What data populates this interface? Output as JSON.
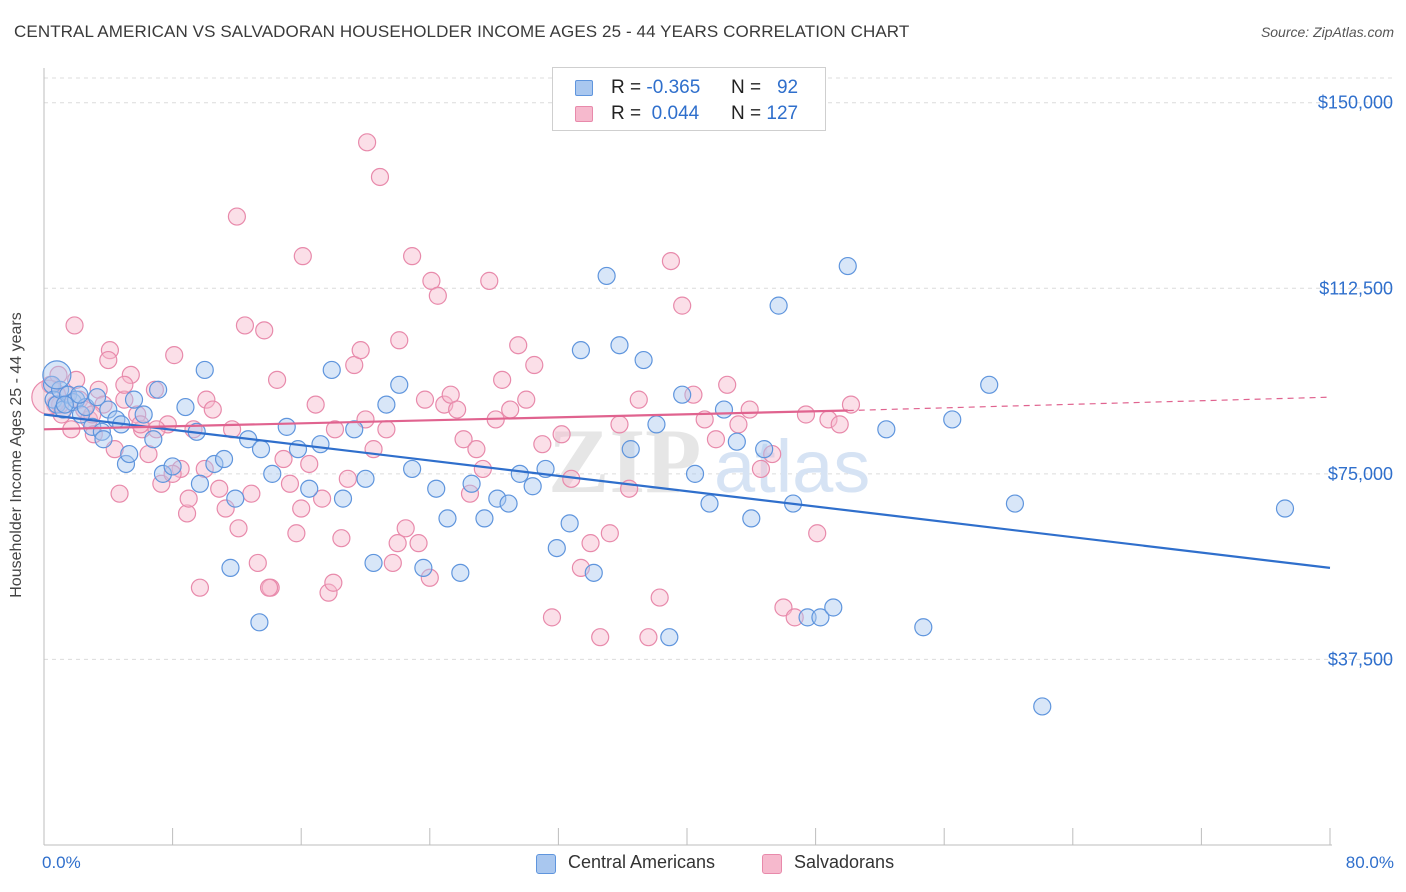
{
  "title": "CENTRAL AMERICAN VS SALVADORAN HOUSEHOLDER INCOME AGES 25 - 44 YEARS CORRELATION CHART",
  "source": "Source: ZipAtlas.com",
  "watermark": {
    "zip": "ZIP",
    "atlas": "atlas"
  },
  "legend": {
    "rows": [
      {
        "r_label": "R =",
        "r_value": "-0.365",
        "n_label": "N =",
        "n_value": "92"
      },
      {
        "r_label": "R =",
        "r_value": "0.044",
        "n_label": "N =",
        "n_value": "127"
      }
    ]
  },
  "bottom_legend": [
    "Central Americans",
    "Salvadorans"
  ],
  "x_axis_labels": {
    "min": "0.0%",
    "max": "80.0%"
  },
  "colors": {
    "blue_fill": "#a9c7ef",
    "blue_stroke": "#5f95dd",
    "blue_line": "#2f6fcc",
    "pink_fill": "#f6b9cd",
    "pink_stroke": "#e88aab",
    "pink_line": "#e0638f",
    "axis_text": "#2f6fcc",
    "grid": "#dcdcdc"
  },
  "chart_data": {
    "type": "scatter",
    "title": "CENTRAL AMERICAN VS SALVADORAN HOUSEHOLDER INCOME AGES 25 - 44 YEARS CORRELATION CHART",
    "xlabel": "",
    "ylabel": "Householder Income Ages 25 - 44 years",
    "xlim": [
      0,
      80
    ],
    "ylim": [
      0,
      155000
    ],
    "y_ticks": [
      37500,
      75000,
      112500,
      150000
    ],
    "y_tick_labels": [
      "$37,500",
      "$75,000",
      "$112,500",
      "$150,000"
    ],
    "grid": true,
    "legend_position": "top-center",
    "series": [
      {
        "name": "Central Americans",
        "r": -0.365,
        "n": 92,
        "trend": {
          "x": [
            0,
            80
          ],
          "y": [
            87000,
            56000
          ],
          "style": "solid"
        },
        "x": [
          0.5,
          0.6,
          0.8,
          1.0,
          1.2,
          1.5,
          1.8,
          2.0,
          2.3,
          2.6,
          3.0,
          3.3,
          3.6,
          4.0,
          4.5,
          4.8,
          5.1,
          5.6,
          6.2,
          6.8,
          7.4,
          8.0,
          8.8,
          9.5,
          10.0,
          10.6,
          11.2,
          11.9,
          12.7,
          13.5,
          14.2,
          15.1,
          15.8,
          16.5,
          17.2,
          17.9,
          18.6,
          19.3,
          20.0,
          20.5,
          21.3,
          22.1,
          22.9,
          23.6,
          24.4,
          25.1,
          25.9,
          26.6,
          27.4,
          28.2,
          28.9,
          29.6,
          30.4,
          31.2,
          31.9,
          32.7,
          33.4,
          34.2,
          35.0,
          35.8,
          36.5,
          37.3,
          38.1,
          38.9,
          39.7,
          40.5,
          41.4,
          42.3,
          43.1,
          44.0,
          44.8,
          45.7,
          46.6,
          47.5,
          48.3,
          49.1,
          50.0,
          52.4,
          54.7,
          56.5,
          58.8,
          60.4,
          62.1,
          77.2,
          1.3,
          2.2,
          3.7,
          5.3,
          7.1,
          9.7,
          11.6,
          13.4
        ],
        "y": [
          93000,
          90000,
          89000,
          92000,
          88000,
          91000,
          89500,
          90000,
          87000,
          88500,
          84500,
          90500,
          83500,
          88000,
          86000,
          85000,
          77000,
          90000,
          87000,
          82000,
          75000,
          76500,
          88500,
          83500,
          96000,
          77000,
          78000,
          70000,
          82000,
          80000,
          75000,
          84500,
          80000,
          72000,
          81000,
          96000,
          70000,
          84000,
          74000,
          57000,
          89000,
          93000,
          76000,
          56000,
          72000,
          66000,
          55000,
          73000,
          66000,
          70000,
          69000,
          75000,
          72500,
          76000,
          60000,
          65000,
          100000,
          55000,
          115000,
          101000,
          80000,
          98000,
          85000,
          42000,
          91000,
          75000,
          69000,
          88000,
          81500,
          66000,
          80000,
          109000,
          69000,
          46000,
          46000,
          48000,
          117000,
          84000,
          44000,
          86000,
          93000,
          69000,
          28000,
          68000,
          89000,
          91000,
          82000,
          79000,
          92000,
          73000,
          56000,
          45000
        ],
        "label_note": "scatter points"
      },
      {
        "name": "Salvadorans",
        "r": 0.044,
        "n": 127,
        "trend": {
          "x": [
            0,
            50,
            80
          ],
          "y": [
            84000,
            87800,
            90500
          ],
          "solid_until": 50
        },
        "x": [
          0.4,
          0.7,
          0.9,
          1.1,
          1.4,
          1.7,
          1.9,
          2.2,
          2.5,
          2.8,
          3.1,
          3.4,
          3.7,
          4.1,
          4.4,
          4.7,
          5.0,
          5.4,
          5.8,
          6.1,
          6.5,
          6.9,
          7.3,
          7.7,
          8.1,
          8.5,
          8.9,
          9.3,
          9.7,
          10.1,
          10.5,
          10.9,
          11.3,
          11.7,
          12.1,
          12.5,
          12.9,
          13.3,
          13.7,
          14.1,
          14.5,
          14.9,
          15.3,
          15.7,
          16.1,
          16.5,
          16.9,
          17.3,
          17.7,
          18.1,
          18.5,
          18.9,
          19.3,
          19.7,
          20.1,
          20.5,
          20.9,
          21.3,
          21.7,
          22.1,
          22.5,
          22.9,
          23.3,
          23.7,
          24.1,
          24.5,
          24.9,
          25.3,
          25.7,
          26.1,
          26.5,
          26.9,
          27.3,
          27.7,
          28.1,
          28.5,
          29.0,
          29.5,
          30.0,
          30.5,
          31.0,
          31.6,
          32.2,
          32.8,
          33.4,
          34.0,
          34.6,
          35.2,
          35.8,
          36.4,
          37.0,
          37.6,
          38.3,
          39.0,
          39.7,
          40.4,
          41.1,
          41.8,
          42.5,
          43.2,
          43.9,
          44.6,
          45.3,
          46.0,
          46.7,
          47.4,
          48.1,
          48.8,
          49.5,
          50.2,
          1.0,
          2.0,
          3.0,
          4.0,
          5.0,
          6.0,
          7.0,
          8.0,
          9.0,
          10.0,
          12.0,
          14.0,
          16.0,
          18.0,
          20.0,
          22.0,
          24.0
        ],
        "y": [
          93000,
          89000,
          95000,
          87000,
          91000,
          84000,
          105000,
          90000,
          88000,
          86000,
          83000,
          92000,
          89000,
          100000,
          80000,
          71000,
          90000,
          95000,
          87000,
          84000,
          79000,
          92000,
          73000,
          85000,
          99000,
          76000,
          67000,
          84000,
          52000,
          90000,
          88000,
          72000,
          68000,
          84000,
          64000,
          105000,
          71000,
          57000,
          104000,
          52000,
          94000,
          78000,
          73000,
          63000,
          119000,
          77000,
          89000,
          70000,
          51000,
          84000,
          62000,
          74000,
          97000,
          100000,
          142000,
          80000,
          135000,
          84000,
          57000,
          102000,
          64000,
          119000,
          61000,
          90000,
          114000,
          111000,
          89000,
          91000,
          88000,
          82000,
          71000,
          80000,
          76000,
          114000,
          86000,
          94000,
          88000,
          101000,
          90000,
          97000,
          81000,
          46000,
          83000,
          74000,
          56000,
          61000,
          42000,
          63000,
          85000,
          72000,
          90000,
          42000,
          50000,
          118000,
          109000,
          91000,
          86000,
          82000,
          93000,
          85000,
          88000,
          76000,
          79000,
          48000,
          46000,
          87000,
          63000,
          86000,
          85000,
          89000,
          89000,
          94000,
          87000,
          98000,
          93000,
          85000,
          84000,
          75000,
          70000,
          76000,
          127000,
          52000,
          68000,
          53000,
          86000,
          61000,
          54000
        ]
      }
    ]
  }
}
